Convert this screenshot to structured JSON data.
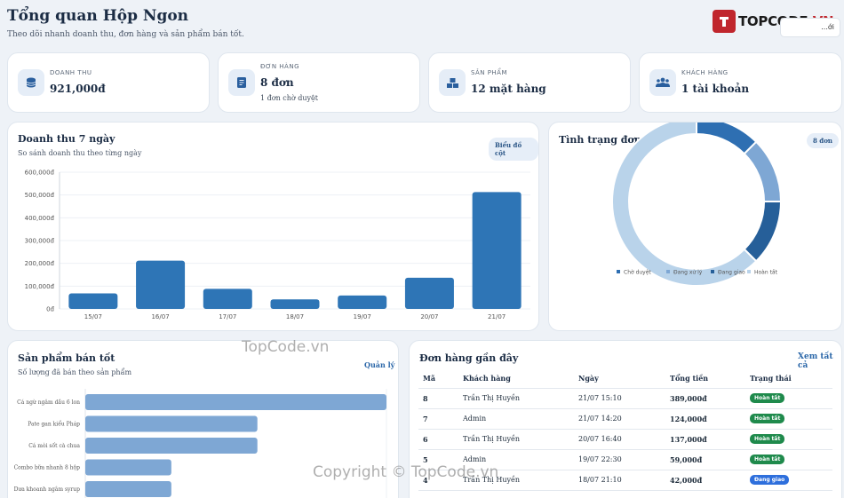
{
  "header": {
    "title": "Tổng quan Hộp Ngon",
    "subtitle": "Theo dõi nhanh doanh thu, đơn hàng và sản phẩm bán tốt.",
    "logo_main": "TOPCODE",
    "logo_accent": ".VN",
    "button_label": "...ới"
  },
  "stats": [
    {
      "label": "DOANH THU",
      "value": "921,000đ",
      "sub": "",
      "icon": "coins-icon"
    },
    {
      "label": "ĐƠN HÀNG",
      "value": "8 đơn",
      "sub": "1 đơn chờ duyệt",
      "icon": "receipt-icon"
    },
    {
      "label": "SẢN PHẨM",
      "value": "12 mặt hàng",
      "sub": "",
      "icon": "boxes-icon"
    },
    {
      "label": "KHÁCH HÀNG",
      "value": "1 tài khoản",
      "sub": "",
      "icon": "users-icon"
    }
  ],
  "revenue_panel": {
    "title": "Doanh thu 7 ngày",
    "subtitle": "So sánh doanh thu theo từng ngày",
    "pill": "Biểu đồ cột"
  },
  "status_panel": {
    "title": "Tình trạng đơn",
    "pill": "8 đơn"
  },
  "products_panel": {
    "title": "Sản phẩm bán tốt",
    "subtitle": "Số lượng đã bán theo sản phẩm",
    "link": "Quản lý"
  },
  "orders_panel": {
    "title": "Đơn hàng gần đây",
    "link": "Xem tất cả",
    "columns": [
      "Mã",
      "Khách hàng",
      "Ngày",
      "Tổng tiền",
      "Trạng thái"
    ],
    "rows": [
      {
        "id": "8",
        "customer": "Trần Thị Huyền",
        "date": "21/07 15:10",
        "total": "389,000đ",
        "status": "Hoàn tất",
        "kind": "done"
      },
      {
        "id": "7",
        "customer": "Admin",
        "date": "21/07 14:20",
        "total": "124,000đ",
        "status": "Hoàn tất",
        "kind": "done"
      },
      {
        "id": "6",
        "customer": "Trần Thị Huyền",
        "date": "20/07 16:40",
        "total": "137,000đ",
        "status": "Hoàn tất",
        "kind": "done"
      },
      {
        "id": "5",
        "customer": "Admin",
        "date": "19/07 22:30",
        "total": "59,000đ",
        "status": "Hoàn tất",
        "kind": "done"
      },
      {
        "id": "4",
        "customer": "Trần Thị Huyền",
        "date": "18/07 21:10",
        "total": "42,000đ",
        "status": "Đang giao",
        "kind": "ship"
      }
    ]
  },
  "watermarks": {
    "center": "TopCode.vn",
    "bottom": "Copyright © TopCode.vn"
  },
  "colors": {
    "bar": "#2e75b6",
    "bar_light": "#7ea7d4",
    "donut": [
      "#2e6fb2",
      "#7ea7d4",
      "#265f99",
      "#b9d3ea"
    ]
  },
  "chart_data": [
    {
      "type": "bar",
      "categories": [
        "15/07",
        "16/07",
        "17/07",
        "18/07",
        "19/07",
        "20/07",
        "21/07"
      ],
      "values": [
        68000,
        212000,
        88000,
        42000,
        59000,
        137000,
        513000
      ],
      "ylim": [
        0,
        600000
      ],
      "yticks": [
        "0đ",
        "100,000đ",
        "200,000đ",
        "300,000đ",
        "400,000đ",
        "500,000đ",
        "600,000đ"
      ],
      "grid": true
    },
    {
      "type": "pie",
      "labels": [
        "Chờ duyệt",
        "Đang xử lý",
        "Đang giao",
        "Hoàn tất"
      ],
      "values": [
        1,
        1,
        1,
        5
      ],
      "legend": "bottom"
    },
    {
      "type": "bar",
      "orientation": "horizontal",
      "categories": [
        "Cá ngừ ngâm dầu 6 lon",
        "Pate gan kiểu Pháp",
        "Cá mòi sốt cà chua",
        "Combo bữa nhanh 8 hộp",
        "Dưa khoanh ngâm syrup"
      ],
      "values": [
        7,
        4,
        4,
        2,
        2
      ],
      "xlim": [
        0,
        7
      ]
    }
  ]
}
